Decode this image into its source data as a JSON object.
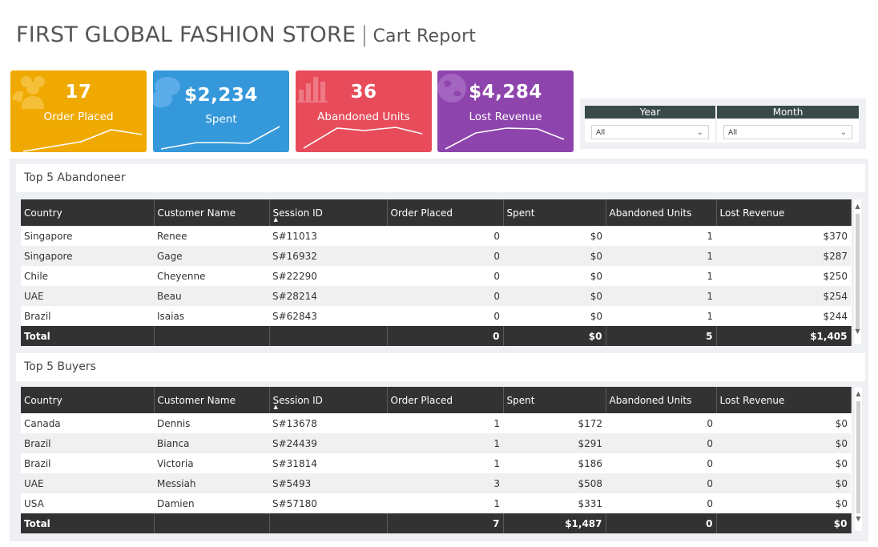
{
  "header": {
    "title": "FIRST GLOBAL FASHION STORE",
    "separator": "|",
    "subtitle": "Cart Report"
  },
  "cards": [
    {
      "value": "17",
      "label": "Order Placed",
      "color": "#f0a900",
      "icon": "people-icon"
    },
    {
      "value": "$2,234",
      "label": "Spent",
      "color": "#3498db",
      "icon": "chat-bubbles-icon"
    },
    {
      "value": "36",
      "label": "Abandoned Units",
      "color": "#e84c5a",
      "icon": "bar-chart-icon"
    },
    {
      "value": "$4,284",
      "label": "Lost Revenue",
      "color": "#8e44ad",
      "icon": "globe-icon"
    }
  ],
  "filters": {
    "year": {
      "label": "Year",
      "value": "All"
    },
    "month": {
      "label": "Month",
      "value": "All"
    }
  },
  "columns": [
    "Country",
    "Customer Name",
    "Session ID",
    "Order Placed",
    "Spent",
    "Abandoned Units",
    "Lost Revenue"
  ],
  "abandoneer": {
    "title": "Top 5 Abandoneer",
    "rows": [
      [
        "Singapore",
        "Renee",
        "S#11013",
        "0",
        "$0",
        "1",
        "$370"
      ],
      [
        "Singapore",
        "Gage",
        "S#16932",
        "0",
        "$0",
        "1",
        "$287"
      ],
      [
        "Chile",
        "Cheyenne",
        "S#22290",
        "0",
        "$0",
        "1",
        "$250"
      ],
      [
        "UAE",
        "Beau",
        "S#28214",
        "0",
        "$0",
        "1",
        "$254"
      ],
      [
        "Brazil",
        "Isaias",
        "S#62843",
        "0",
        "$0",
        "1",
        "$244"
      ]
    ],
    "total": [
      "Total",
      "",
      "",
      "0",
      "$0",
      "5",
      "$1,405"
    ]
  },
  "buyers": {
    "title": "Top 5 Buyers",
    "rows": [
      [
        "Canada",
        "Dennis",
        "S#13678",
        "1",
        "$172",
        "0",
        "$0"
      ],
      [
        "Brazil",
        "Bianca",
        "S#24439",
        "1",
        "$291",
        "0",
        "$0"
      ],
      [
        "Brazil",
        "Victoria",
        "S#31814",
        "1",
        "$186",
        "0",
        "$0"
      ],
      [
        "UAE",
        "Messiah",
        "S#5493",
        "3",
        "$508",
        "0",
        "$0"
      ],
      [
        "USA",
        "Damien",
        "S#57180",
        "1",
        "$331",
        "0",
        "$0"
      ]
    ],
    "total": [
      "Total",
      "",
      "",
      "7",
      "$1,487",
      "0",
      "$0"
    ]
  }
}
